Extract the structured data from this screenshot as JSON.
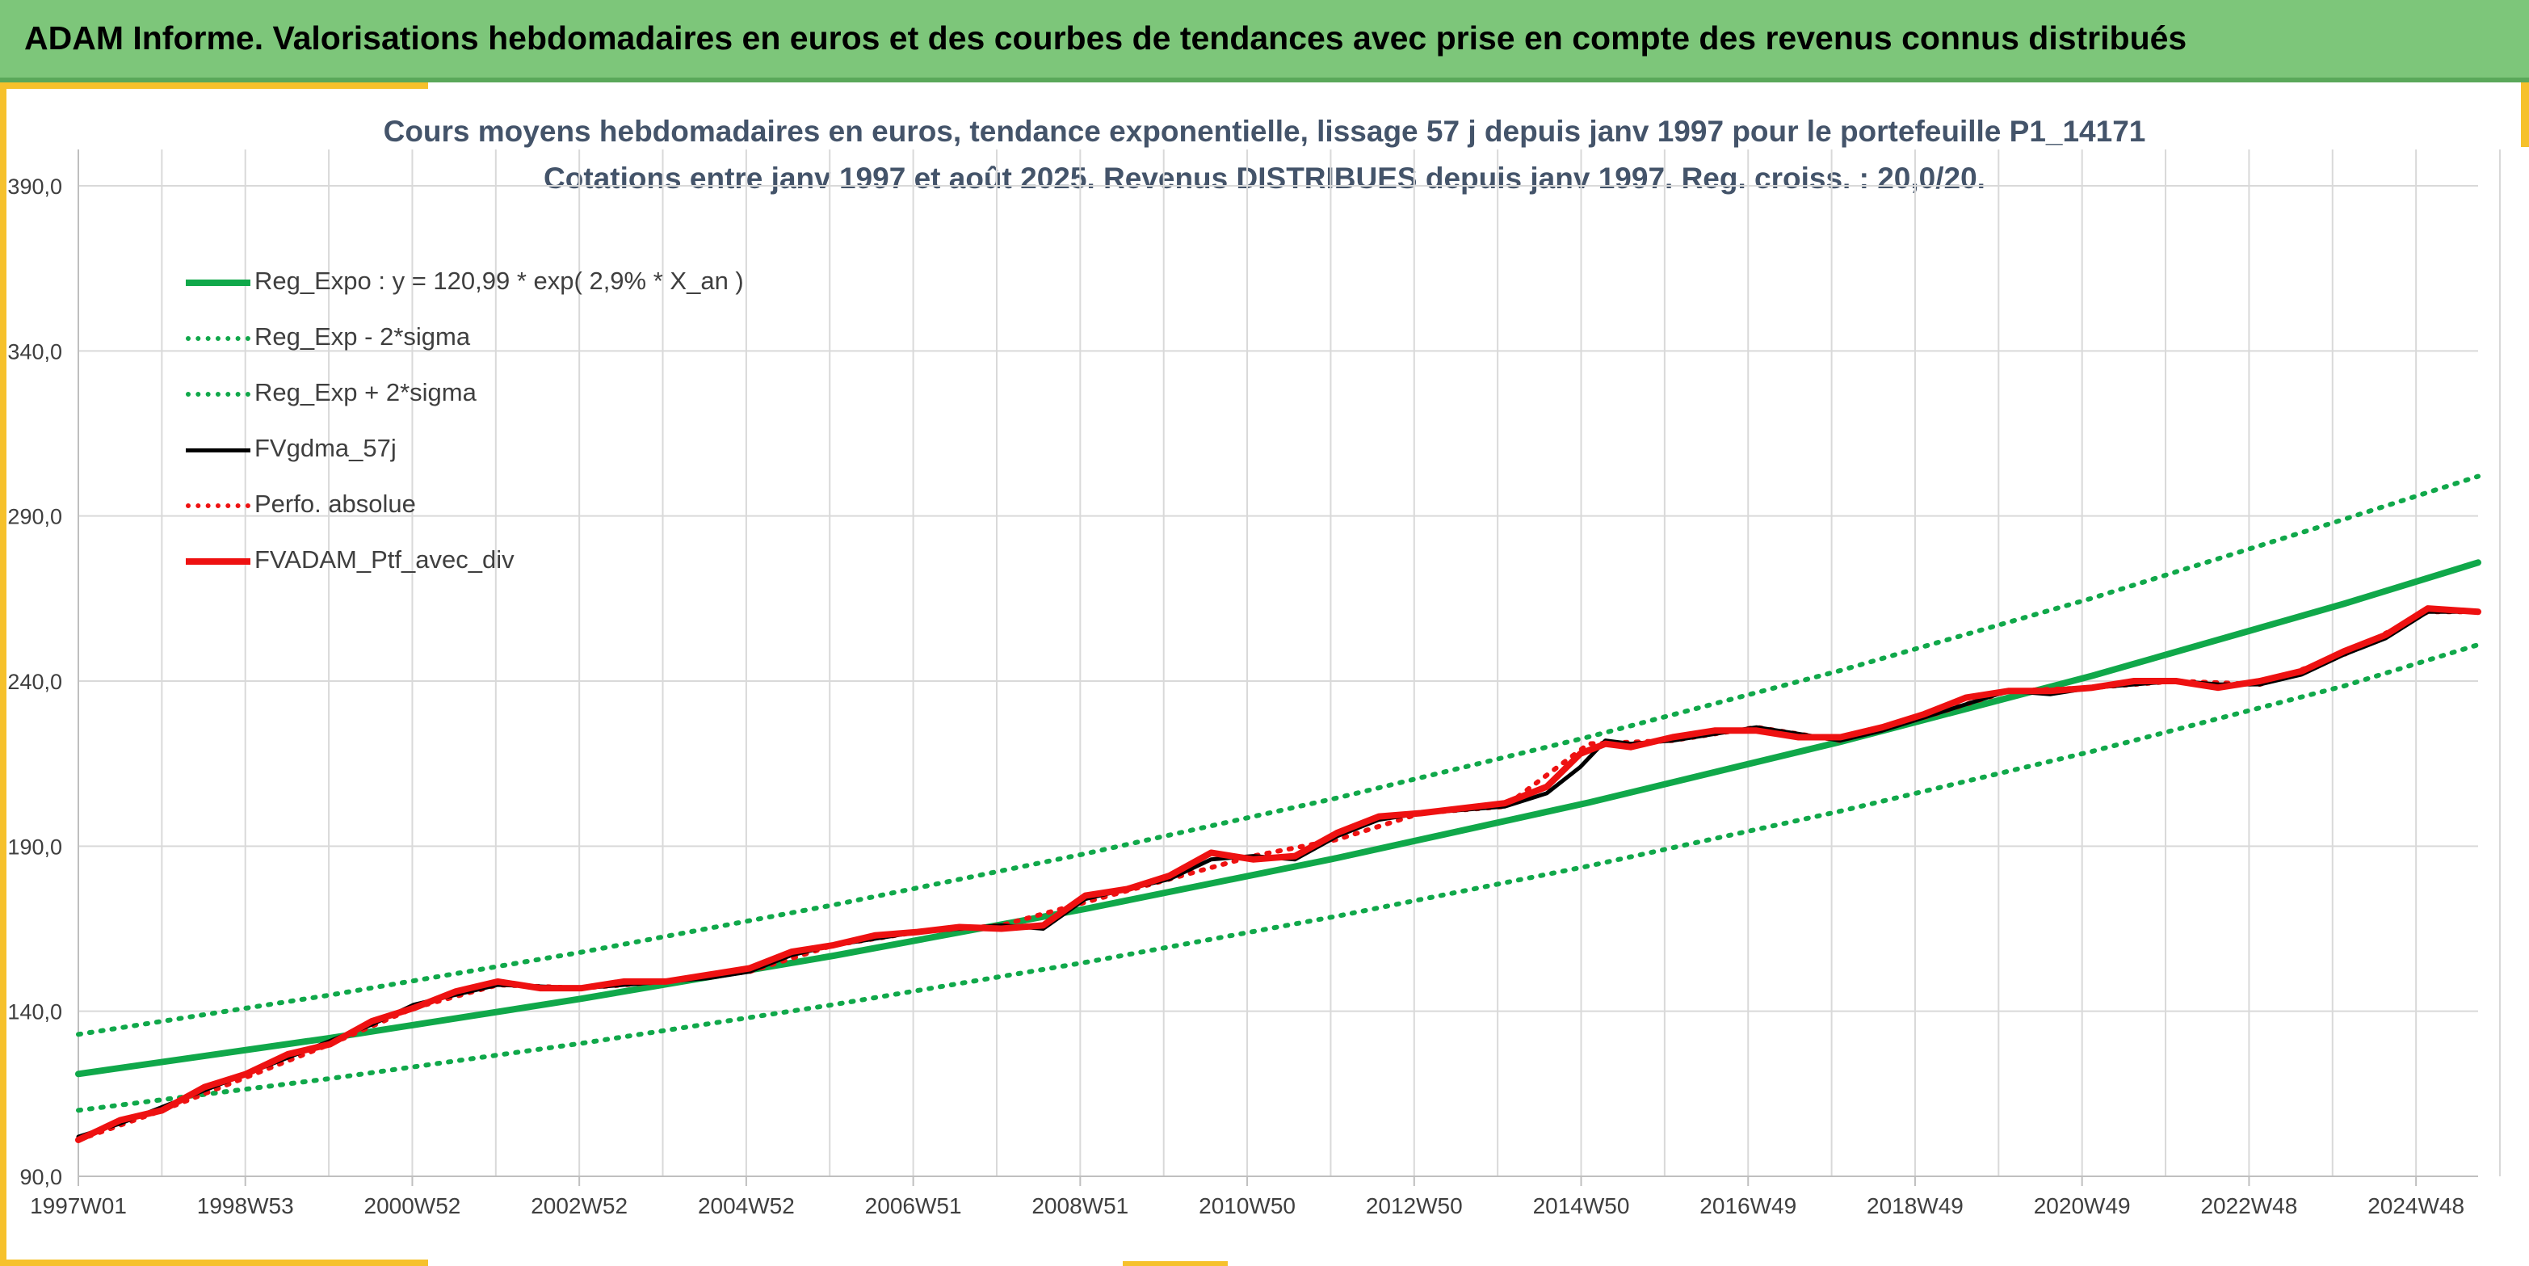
{
  "header": {
    "title": "ADAM Informe. Valorisations hebdomadaires en euros et des courbes de tendances avec prise en compte des revenus connus distribués"
  },
  "colors": {
    "header_bg": "#7dc67a",
    "accent": "#f6c12c",
    "trend_green": "#10a84a",
    "series_red": "#ee1111",
    "series_black": "#000000",
    "title_text": "#44546a"
  },
  "chart_data": {
    "type": "line",
    "title": "Cours moyens hebdomadaires en euros, tendance exponentielle, lissage 57 j depuis janv 1997 pour le portefeuille P1_14171",
    "subtitle": "Cotations entre janv 1997 et août 2025. Revenus DISTRIBUES depuis janv 1997. Reg. croiss. : 20,0/20.",
    "xlabel": "",
    "ylabel": "",
    "x_range": [
      1997.0,
      2025.6
    ],
    "x_ticks": [
      {
        "label": "1997W01",
        "x": 1997.0
      },
      {
        "label": "1998W53",
        "x": 1998.99
      },
      {
        "label": "2000W52",
        "x": 2000.98
      },
      {
        "label": "2002W52",
        "x": 2002.97
      },
      {
        "label": "2004W52",
        "x": 2004.96
      },
      {
        "label": "2006W51",
        "x": 2006.95
      },
      {
        "label": "2008W51",
        "x": 2008.94
      },
      {
        "label": "2010W50",
        "x": 2010.93
      },
      {
        "label": "2012W50",
        "x": 2012.92
      },
      {
        "label": "2014W50",
        "x": 2014.91
      },
      {
        "label": "2016W49",
        "x": 2016.9
      },
      {
        "label": "2018W49",
        "x": 2018.89
      },
      {
        "label": "2020W49",
        "x": 2020.88
      },
      {
        "label": "2022W48",
        "x": 2022.87
      },
      {
        "label": "2024W48",
        "x": 2024.86
      }
    ],
    "ylim": [
      90,
      390
    ],
    "y_ticks": [
      "90,0",
      "140,0",
      "190,0",
      "240,0",
      "290,0",
      "340,0",
      "390,0"
    ],
    "y_tick_values": [
      90,
      140,
      190,
      240,
      290,
      340,
      390
    ],
    "grid": true,
    "legend_position": "top-left",
    "series": [
      {
        "name": "Reg_Expo : y = 120,99 * exp( 2,9% *  X_an )",
        "style": "solid-thick",
        "color": "#10a84a",
        "x": [
          1997,
          2000,
          2003,
          2006,
          2009,
          2012,
          2015,
          2018,
          2021,
          2024,
          2025.6
        ],
        "values": [
          121.0,
          131.9,
          143.8,
          156.8,
          171.0,
          186.4,
          203.2,
          221.6,
          241.6,
          263.4,
          275.9
        ]
      },
      {
        "name": "Reg_Exp - 2*sigma",
        "style": "dotted",
        "color": "#10a84a",
        "x": [
          1997,
          2000,
          2003,
          2006,
          2009,
          2012,
          2015,
          2018,
          2021,
          2024,
          2025.6
        ],
        "values": [
          110.0,
          119.6,
          130.3,
          142.0,
          154.8,
          168.8,
          184.0,
          200.6,
          218.7,
          238.5,
          251.0
        ]
      },
      {
        "name": "Reg_Exp + 2*sigma",
        "style": "dotted",
        "color": "#10a84a",
        "x": [
          1997,
          2000,
          2003,
          2006,
          2009,
          2012,
          2015,
          2018,
          2021,
          2024,
          2025.6
        ],
        "values": [
          133.0,
          144.9,
          157.9,
          172.2,
          187.7,
          204.6,
          223.1,
          243.2,
          265.1,
          289.0,
          302.0
        ]
      },
      {
        "name": "FVgdma_57j",
        "style": "solid",
        "color": "#000000",
        "x": [
          1997.0,
          1997.5,
          1998.0,
          1998.5,
          1999.0,
          1999.5,
          2000.0,
          2000.5,
          2001.0,
          2001.5,
          2002.0,
          2002.5,
          2003.0,
          2003.5,
          2004.0,
          2004.5,
          2005.0,
          2005.5,
          2006.0,
          2006.5,
          2007.0,
          2007.5,
          2008.0,
          2008.5,
          2009.0,
          2009.5,
          2010.0,
          2010.5,
          2011.0,
          2011.5,
          2012.0,
          2012.5,
          2013.0,
          2013.5,
          2014.0,
          2014.5,
          2014.9,
          2015.2,
          2015.5,
          2016.0,
          2016.5,
          2017.0,
          2017.5,
          2018.0,
          2018.5,
          2019.0,
          2019.5,
          2020.0,
          2020.5,
          2021.0,
          2021.5,
          2022.0,
          2022.5,
          2023.0,
          2023.5,
          2024.0,
          2024.5,
          2025.0,
          2025.6
        ],
        "values": [
          102.0,
          106.0,
          111.0,
          116.0,
          121.0,
          126.0,
          131.0,
          136.0,
          142.0,
          145.0,
          148.0,
          147.5,
          147.0,
          148.0,
          149.0,
          150.0,
          152.0,
          157.0,
          160.0,
          162.0,
          164.0,
          165.0,
          166.0,
          165.0,
          174.0,
          177.0,
          180.0,
          186.0,
          187.0,
          186.0,
          193.0,
          198.0,
          200.0,
          201.0,
          202.0,
          206.0,
          214.0,
          222.0,
          221.0,
          222.0,
          224.0,
          226.0,
          224.0,
          222.0,
          225.0,
          229.0,
          233.0,
          237.0,
          236.0,
          238.0,
          239.0,
          240.0,
          239.0,
          239.0,
          242.0,
          248.0,
          253.0,
          261.0,
          261.0
        ]
      },
      {
        "name": "Perfo. absolue",
        "style": "dotted",
        "color": "#ee1111",
        "x": [
          1997.0,
          1998.0,
          1999.0,
          2000.0,
          2001.0,
          2002.0,
          2003.0,
          2004.0,
          2005.0,
          2006.0,
          2007.0,
          2008.0,
          2009.0,
          2010.0,
          2011.0,
          2012.0,
          2013.0,
          2014.0,
          2015.0,
          2016.0,
          2017.0,
          2018.0,
          2019.0,
          2020.0,
          2021.0,
          2022.0,
          2023.0,
          2024.0,
          2025.0,
          2025.6
        ],
        "values": [
          101.0,
          110.0,
          120.0,
          130.0,
          141.0,
          148.0,
          147.0,
          149.0,
          152.0,
          160.0,
          164.0,
          166.0,
          173.0,
          180.0,
          187.0,
          192.0,
          200.0,
          202.0,
          221.0,
          222.0,
          226.0,
          222.0,
          229.0,
          237.0,
          238.0,
          240.0,
          239.0,
          248.0,
          261.0,
          261.0
        ]
      },
      {
        "name": "FVADAM_Ptf_avec_div",
        "style": "solid-thick",
        "color": "#ee1111",
        "x": [
          1997.0,
          1997.5,
          1998.0,
          1998.5,
          1999.0,
          1999.5,
          2000.0,
          2000.5,
          2001.0,
          2001.5,
          2002.0,
          2002.5,
          2003.0,
          2003.5,
          2004.0,
          2004.5,
          2005.0,
          2005.5,
          2006.0,
          2006.5,
          2007.0,
          2007.5,
          2008.0,
          2008.5,
          2009.0,
          2009.5,
          2010.0,
          2010.5,
          2011.0,
          2011.5,
          2012.0,
          2012.5,
          2013.0,
          2013.5,
          2014.0,
          2014.5,
          2014.9,
          2015.2,
          2015.5,
          2016.0,
          2016.5,
          2017.0,
          2017.5,
          2018.0,
          2018.5,
          2019.0,
          2019.5,
          2020.0,
          2020.5,
          2021.0,
          2021.5,
          2022.0,
          2022.5,
          2023.0,
          2023.5,
          2024.0,
          2024.5,
          2025.0,
          2025.6
        ],
        "values": [
          101.0,
          107.0,
          110.0,
          117.0,
          121.0,
          127.0,
          130.0,
          137.0,
          141.0,
          146.0,
          149.0,
          147.0,
          147.0,
          149.0,
          149.0,
          151.0,
          153.0,
          158.0,
          160.0,
          163.0,
          164.0,
          165.5,
          165.0,
          166.0,
          175.0,
          177.0,
          181.0,
          188.0,
          186.0,
          187.0,
          194.0,
          199.0,
          200.0,
          201.5,
          203.0,
          208.0,
          218.0,
          221.0,
          220.0,
          223.0,
          225.0,
          225.0,
          223.0,
          223.0,
          226.0,
          230.0,
          235.0,
          237.0,
          237.0,
          238.0,
          240.0,
          240.0,
          238.0,
          240.0,
          243.0,
          249.0,
          254.0,
          262.0,
          261.0
        ]
      }
    ]
  }
}
